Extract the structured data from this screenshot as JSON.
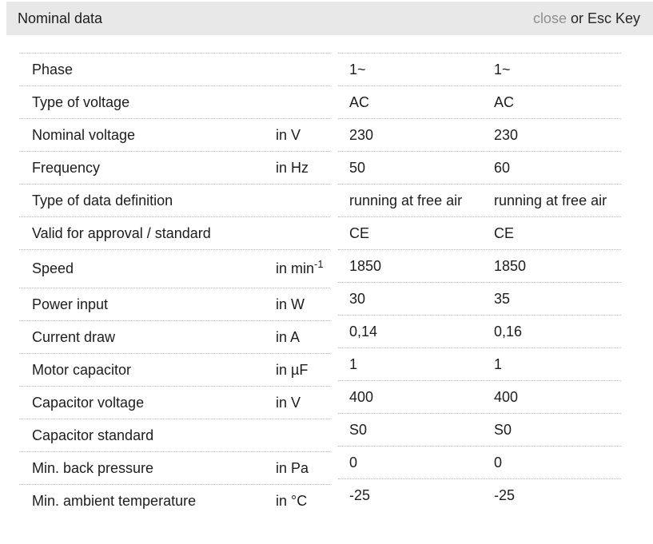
{
  "header": {
    "title": "Nominal data",
    "close_label": "close",
    "close_suffix": " or Esc Key"
  },
  "colors": {
    "header_bg": "#e8e8e8",
    "close_link": "#8f8f8f",
    "text": "#1d1d1d",
    "divider": "#b3b3b3"
  },
  "table": {
    "rows": [
      {
        "label": "Phase",
        "unit": "",
        "unit_sup": "",
        "v1": "1~",
        "v2": "1~"
      },
      {
        "label": "Type of voltage",
        "unit": "",
        "unit_sup": "",
        "v1": "AC",
        "v2": "AC"
      },
      {
        "label": "Nominal voltage",
        "unit": "in V",
        "unit_sup": "",
        "v1": "230",
        "v2": "230"
      },
      {
        "label": "Frequency",
        "unit": "in Hz",
        "unit_sup": "",
        "v1": "50",
        "v2": "60"
      },
      {
        "label": "Type of data definition",
        "unit": "",
        "unit_sup": "",
        "v1": "running at free air",
        "v2": "running at free air"
      },
      {
        "label": "Valid for approval / standard",
        "unit": "",
        "unit_sup": "",
        "v1": "CE",
        "v2": "CE"
      },
      {
        "label": "Speed",
        "unit": "in min",
        "unit_sup": "-1",
        "v1": "1850",
        "v2": "1850"
      },
      {
        "label": "Power input",
        "unit": "in W",
        "unit_sup": "",
        "v1": "30",
        "v2": "35"
      },
      {
        "label": "Current draw",
        "unit": "in A",
        "unit_sup": "",
        "v1": "0,14",
        "v2": "0,16"
      },
      {
        "label": "Motor capacitor",
        "unit": "in µF",
        "unit_sup": "",
        "v1": "1",
        "v2": "1"
      },
      {
        "label": "Capacitor voltage",
        "unit": "in V",
        "unit_sup": "",
        "v1": "400",
        "v2": "400"
      },
      {
        "label": "Capacitor standard",
        "unit": "",
        "unit_sup": "",
        "v1": "S0",
        "v2": "S0"
      },
      {
        "label": "Min. back pressure",
        "unit": "in Pa",
        "unit_sup": "",
        "v1": "0",
        "v2": "0"
      },
      {
        "label": "Min. ambient temperature",
        "unit": "in °C",
        "unit_sup": "",
        "v1": "-25",
        "v2": "-25"
      }
    ]
  }
}
